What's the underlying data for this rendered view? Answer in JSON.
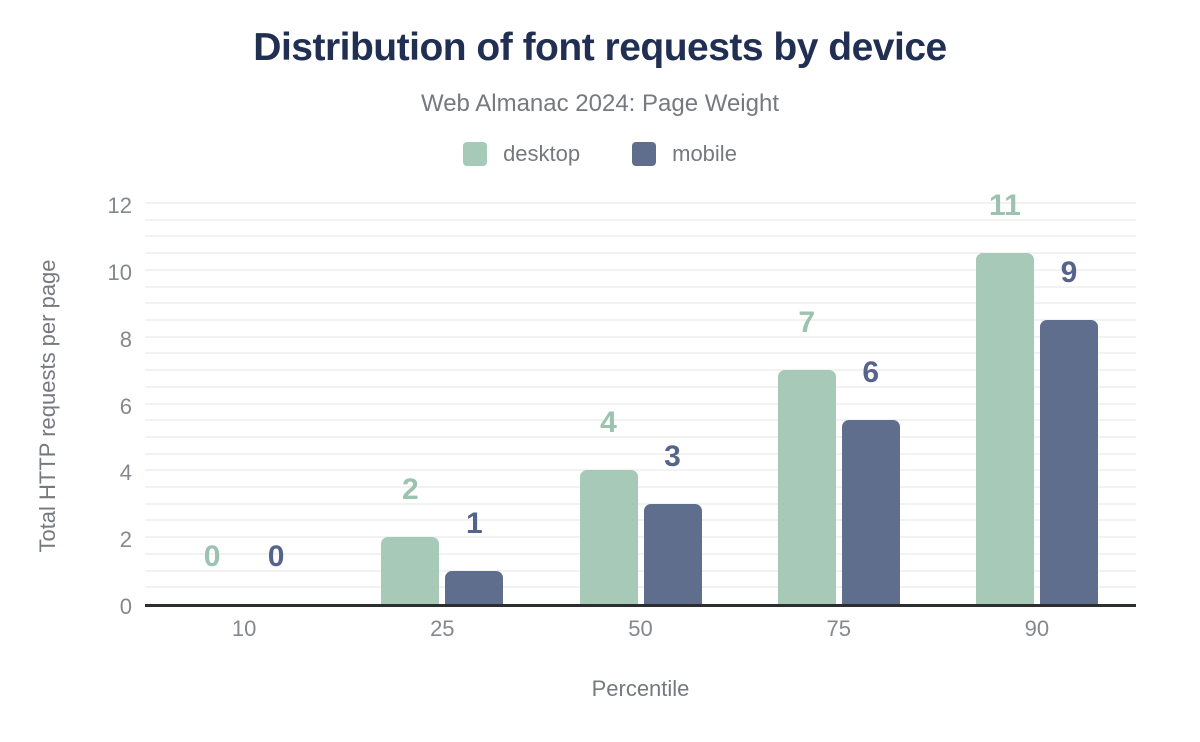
{
  "palette": {
    "title_color": "#212f52",
    "muted_color": "#76797d",
    "tick_color": "#85888c",
    "grid_color": "#f2f2f2",
    "axis_color": "#2d2e2f"
  },
  "chart_data": {
    "type": "bar",
    "title": "Distribution of font requests by device",
    "subtitle": "Web Almanac 2024: Page Weight",
    "xlabel": "Percentile",
    "ylabel": "Total HTTP requests per page",
    "categories": [
      "10",
      "25",
      "50",
      "75",
      "90"
    ],
    "series": [
      {
        "name": "desktop",
        "color": "#a6c9b8",
        "label_color": "#9cc2b0",
        "values": [
          0,
          2,
          4,
          7,
          10.5
        ],
        "labels": [
          "0",
          "2",
          "4",
          "7",
          "11"
        ]
      },
      {
        "name": "mobile",
        "color": "#5f6e8c",
        "label_color": "#55648b",
        "values": [
          0,
          1,
          3,
          5.5,
          8.5
        ],
        "labels": [
          "0",
          "1",
          "3",
          "6",
          "9"
        ]
      }
    ],
    "ylim": [
      0,
      12
    ],
    "y_ticks": [
      0,
      2,
      4,
      6,
      8,
      10,
      12
    ],
    "y_minor_step": 0.5,
    "grid": "horizontal-minor",
    "legend_position": "top"
  }
}
